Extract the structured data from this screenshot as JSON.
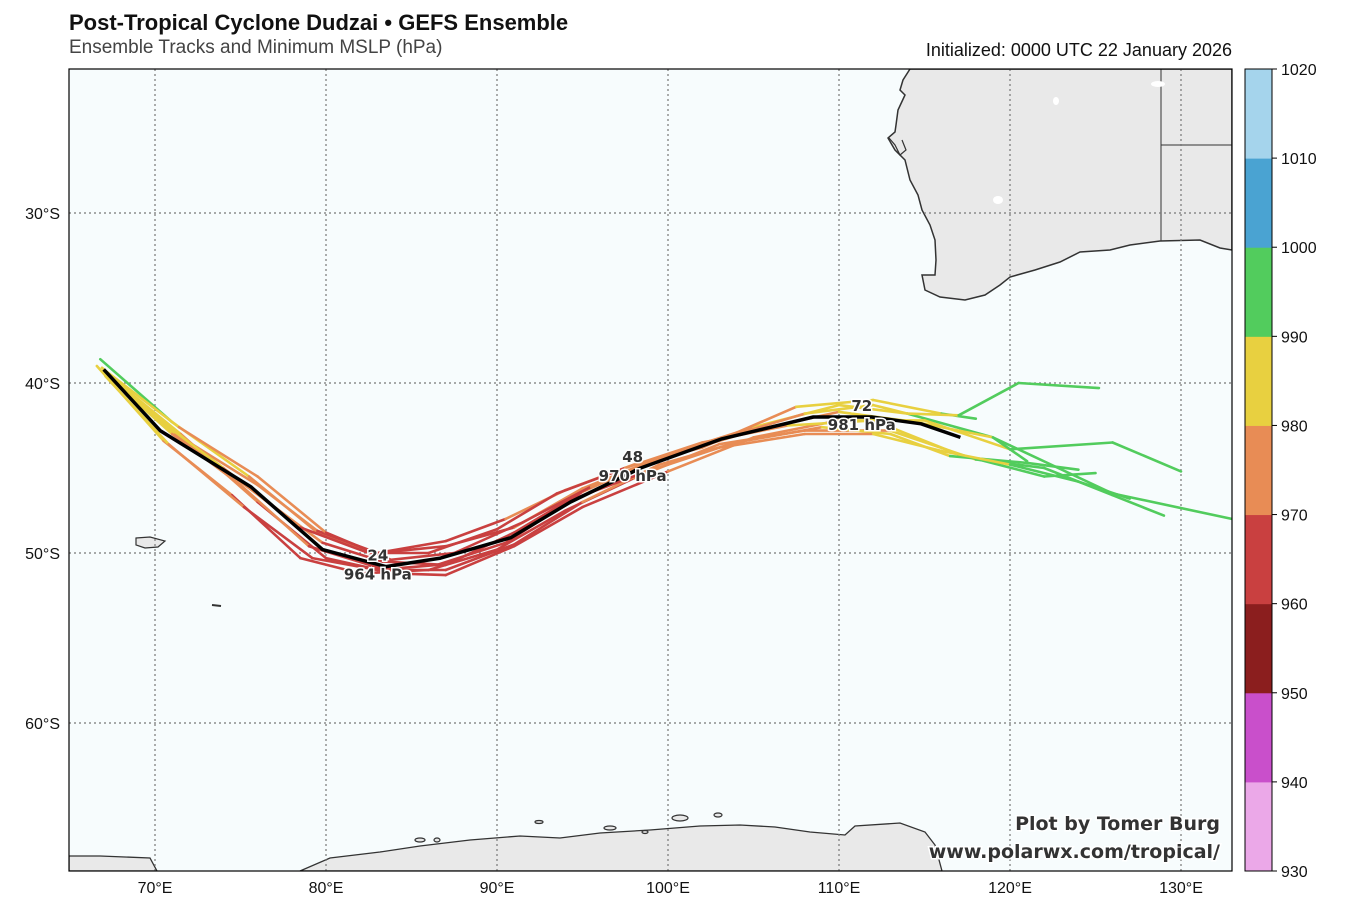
{
  "header": {
    "title": "Post-Tropical Cyclone Dudzai • GEFS Ensemble",
    "subtitle": "Ensemble Tracks and Minimum MSLP (hPa)",
    "initialized": "Initialized: 0000 UTC 22 January 2026"
  },
  "credit": {
    "line1": "Plot by Tomer Burg",
    "line2": "www.polarwx.com/tropical/"
  },
  "map": {
    "lon_range": [
      65,
      133
    ],
    "lat_range": [
      -21.5,
      -68.7
    ],
    "lon_ticks": [
      {
        "v": 70,
        "label": "70°E"
      },
      {
        "v": 80,
        "label": "80°E"
      },
      {
        "v": 90,
        "label": "90°E"
      },
      {
        "v": 100,
        "label": "100°E"
      },
      {
        "v": 110,
        "label": "110°E"
      },
      {
        "v": 120,
        "label": "120°E"
      },
      {
        "v": 130,
        "label": "130°E"
      }
    ],
    "lat_ticks": [
      {
        "v": 30,
        "label": "30°S"
      },
      {
        "v": 40,
        "label": "40°S"
      },
      {
        "v": 50,
        "label": "50°S"
      },
      {
        "v": 60,
        "label": "60°S"
      }
    ],
    "ocean_color": "#f7fcfd",
    "land_color": "#e9e9e9"
  },
  "colorbar": {
    "ticks": [
      "930",
      "940",
      "950",
      "960",
      "970",
      "980",
      "990",
      "1000",
      "1010",
      "1020"
    ],
    "bins": [
      {
        "min": 930,
        "color": "#eba8e8"
      },
      {
        "min": 940,
        "color": "#c94fcb"
      },
      {
        "min": 950,
        "color": "#8b1e1e"
      },
      {
        "min": 960,
        "color": "#c94040"
      },
      {
        "min": 970,
        "color": "#e88c55"
      },
      {
        "min": 980,
        "color": "#e8d040"
      },
      {
        "min": 990,
        "color": "#52cc5d"
      },
      {
        "min": 1000,
        "color": "#4aa3d2"
      },
      {
        "min": 1010,
        "color": "#a5d4ec"
      }
    ]
  },
  "chart_data": {
    "type": "line",
    "title": "Ensemble Tracks and Minimum MSLP (hPa)",
    "units": "[lon °E, lat °S, MSLP hPa]",
    "mean_track": [
      [
        67,
        39.2,
        985
      ],
      [
        70.3,
        42.8,
        982
      ],
      [
        75.6,
        46.1,
        975
      ],
      [
        79.8,
        49.8,
        966
      ],
      [
        83.5,
        50.8,
        964
      ],
      [
        86.7,
        50.3,
        965
      ],
      [
        90.8,
        49.1,
        966
      ],
      [
        94.3,
        47.0,
        968
      ],
      [
        98.4,
        45.0,
        970
      ],
      [
        103.1,
        43.3,
        973
      ],
      [
        108.5,
        42.0,
        978
      ],
      [
        111.9,
        42.0,
        981
      ],
      [
        114.8,
        42.4,
        983
      ],
      [
        117.1,
        43.2,
        985
      ]
    ],
    "labels": [
      {
        "lon": 83.5,
        "lat": 50.8,
        "hour": "24",
        "mslp": "964 hPa"
      },
      {
        "lon": 98.4,
        "lat": 45.0,
        "hour": "48",
        "mslp": "970 hPa"
      },
      {
        "lon": 111.8,
        "lat": 42.0,
        "hour": "72",
        "mslp": "981 hPa"
      }
    ],
    "members": [
      [
        [
          66.8,
          38.6,
          992
        ],
        [
          71,
          42.3,
          991
        ],
        [
          75.5,
          45.5,
          983
        ],
        [
          79.5,
          48.8,
          974
        ],
        [
          83,
          50,
          968
        ],
        [
          87,
          49.6,
          968
        ],
        [
          91,
          48.5,
          970
        ],
        [
          95,
          46.2,
          972
        ],
        [
          100,
          44.2,
          975
        ],
        [
          105,
          42.6,
          978
        ],
        [
          110,
          41.3,
          982
        ],
        [
          114,
          41.8,
          988
        ],
        [
          119,
          43.2,
          992
        ],
        [
          126,
          46.5,
          995
        ],
        [
          133,
          48.0,
          996
        ]
      ],
      [
        [
          66.6,
          39.0,
          985
        ],
        [
          70.5,
          43.4,
          984
        ],
        [
          74.5,
          46.6,
          972
        ],
        [
          78.5,
          50.3,
          964
        ],
        [
          82,
          51.2,
          962
        ],
        [
          86,
          51.0,
          963
        ],
        [
          90,
          49.8,
          965
        ],
        [
          94,
          47.5,
          967
        ],
        [
          98,
          45.6,
          970
        ],
        [
          103,
          43.6,
          972
        ],
        [
          108,
          42.8,
          976
        ],
        [
          113,
          42.8,
          982
        ],
        [
          118,
          44.5,
          990
        ],
        [
          122,
          45.0,
          993
        ],
        [
          126,
          46.6,
          995
        ],
        [
          129,
          47.8,
          996
        ]
      ],
      [
        [
          67,
          39.3,
          984
        ],
        [
          71.5,
          43.0,
          981
        ],
        [
          76,
          47,
          970
        ],
        [
          80,
          50.3,
          962
        ],
        [
          84,
          51.2,
          962
        ],
        [
          87,
          51.3,
          963
        ],
        [
          91,
          49.6,
          965
        ],
        [
          95,
          47.3,
          968
        ],
        [
          100,
          45.2,
          971
        ],
        [
          105,
          43.2,
          975
        ],
        [
          110,
          42.2,
          980
        ],
        [
          115,
          42.2,
          986
        ],
        [
          120,
          43.9,
          992
        ],
        [
          126,
          43.5,
          994
        ],
        [
          130,
          45.2,
          995
        ]
      ],
      [
        [
          67.2,
          39.5,
          983
        ],
        [
          72,
          43.5,
          980
        ],
        [
          76,
          46,
          973
        ],
        [
          79.5,
          48.7,
          970
        ],
        [
          83,
          50,
          968
        ],
        [
          87,
          49.3,
          968
        ],
        [
          90.5,
          48,
          970
        ],
        [
          94,
          46.3,
          972
        ],
        [
          98,
          44.8,
          975
        ],
        [
          102,
          43.8,
          976
        ],
        [
          107.5,
          41.4,
          978
        ],
        [
          112,
          41,
          983
        ],
        [
          116,
          41.8,
          989
        ],
        [
          118,
          42.1,
          992
        ]
      ],
      [
        [
          66.9,
          39.1,
          986
        ],
        [
          71.2,
          43,
          983
        ],
        [
          75.8,
          46.4,
          975
        ],
        [
          79.8,
          49.4,
          968
        ],
        [
          83.3,
          50.5,
          966
        ],
        [
          87,
          50.7,
          966
        ],
        [
          91,
          48.8,
          967
        ],
        [
          95,
          46.4,
          970
        ],
        [
          99,
          44.6,
          972
        ],
        [
          104,
          43,
          975
        ],
        [
          108,
          41.8,
          979
        ],
        [
          112,
          41.3,
          983
        ],
        [
          114,
          41.8,
          988
        ],
        [
          117,
          41.9,
          990
        ],
        [
          120.5,
          40,
          993
        ],
        [
          125.2,
          40.3,
          995
        ]
      ],
      [
        [
          67,
          39.4,
          986
        ],
        [
          70,
          42,
          984
        ],
        [
          74,
          45,
          978
        ],
        [
          78.5,
          48.5,
          972
        ],
        [
          82.5,
          50,
          966
        ],
        [
          86,
          50,
          965
        ],
        [
          90,
          48.6,
          966
        ],
        [
          93.5,
          46.5,
          968
        ],
        [
          97.5,
          45,
          970
        ],
        [
          102,
          43.5,
          973
        ],
        [
          107,
          42.5,
          978
        ],
        [
          112,
          42.2,
          983
        ],
        [
          117,
          44.2,
          990
        ],
        [
          122,
          45.5,
          992
        ],
        [
          125,
          45.3,
          993
        ]
      ],
      [
        [
          67,
          39.4,
          986
        ],
        [
          71,
          43,
          983
        ],
        [
          75,
          46,
          976
        ],
        [
          79,
          49.6,
          967
        ],
        [
          83.5,
          51,
          963
        ],
        [
          87,
          51,
          964
        ],
        [
          91,
          49.5,
          966
        ],
        [
          95,
          47,
          969
        ],
        [
          99.5,
          44.8,
          972
        ],
        [
          104,
          43.5,
          974
        ],
        [
          109,
          42.6,
          979
        ],
        [
          113,
          43,
          984
        ],
        [
          116.5,
          44.3,
          990
        ],
        [
          121,
          44.7,
          993
        ],
        [
          124,
          45.1,
          994
        ]
      ],
      [
        [
          67.1,
          39.6,
          987
        ],
        [
          70.8,
          43.6,
          985
        ],
        [
          75.2,
          47.3,
          974
        ],
        [
          79.2,
          50.3,
          964
        ],
        [
          83,
          51,
          961
        ],
        [
          86.5,
          50.7,
          962
        ],
        [
          90.5,
          49.4,
          964
        ],
        [
          94.5,
          46.8,
          967
        ],
        [
          98.5,
          45.3,
          969
        ],
        [
          103,
          43.8,
          972
        ],
        [
          108,
          43,
          976
        ],
        [
          112,
          43,
          981
        ],
        [
          116,
          44,
          986
        ],
        [
          120,
          44.8,
          991
        ],
        [
          124,
          45.8,
          994
        ],
        [
          127,
          46.8,
          996
        ]
      ],
      [
        [
          67,
          39.2,
          985
        ],
        [
          71.4,
          42.6,
          982
        ],
        [
          76,
          45.5,
          976
        ],
        [
          80,
          48.8,
          970
        ],
        [
          83.8,
          50.4,
          966
        ],
        [
          87.5,
          50,
          967
        ],
        [
          91.5,
          48.2,
          968
        ],
        [
          95.5,
          46.1,
          970
        ],
        [
          100,
          44.3,
          973
        ],
        [
          105,
          42.8,
          976
        ],
        [
          110,
          41.7,
          980
        ],
        [
          114.5,
          42.3,
          986
        ],
        [
          119,
          43.2,
          991
        ],
        [
          121,
          44.6,
          993
        ]
      ]
    ]
  }
}
